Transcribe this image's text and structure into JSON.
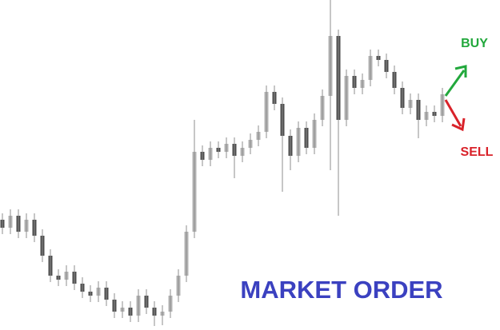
{
  "chart_data": {
    "type": "candlestick",
    "categories": [
      null,
      null,
      null,
      null,
      null,
      null,
      null,
      null,
      null,
      null,
      null,
      null,
      null,
      null,
      null,
      null,
      null,
      null,
      null,
      null,
      null,
      null,
      null,
      null,
      null,
      null,
      null,
      null,
      null,
      null,
      null,
      null,
      null,
      null,
      null,
      null,
      null,
      null,
      null,
      null,
      null,
      null,
      null,
      null,
      null,
      null,
      null,
      null,
      null,
      null,
      null,
      null,
      null,
      null,
      null,
      null
    ],
    "open": [
      138,
      128,
      143,
      123,
      138,
      118,
      93,
      68,
      63,
      73,
      58,
      48,
      43,
      53,
      38,
      23,
      28,
      18,
      43,
      28,
      18,
      23,
      43,
      68,
      123,
      223,
      213,
      228,
      223,
      233,
      218,
      228,
      238,
      248,
      298,
      283,
      243,
      218,
      253,
      228,
      263,
      293,
      368,
      263,
      318,
      303,
      313,
      343,
      338,
      323,
      303,
      278,
      288,
      263,
      273,
      268
    ],
    "high": [
      146,
      151,
      151,
      146,
      146,
      126,
      101,
      76,
      81,
      81,
      66,
      56,
      61,
      61,
      46,
      36,
      36,
      51,
      51,
      36,
      31,
      51,
      76,
      131,
      263,
      231,
      236,
      236,
      241,
      241,
      236,
      246,
      256,
      306,
      306,
      291,
      251,
      261,
      261,
      271,
      301,
      413,
      376,
      326,
      326,
      321,
      351,
      351,
      346,
      331,
      311,
      296,
      296,
      281,
      281,
      303
    ],
    "low": [
      120,
      120,
      115,
      115,
      110,
      85,
      60,
      55,
      55,
      50,
      40,
      35,
      35,
      30,
      15,
      15,
      10,
      10,
      20,
      5,
      6,
      15,
      35,
      60,
      115,
      205,
      205,
      215,
      215,
      190,
      210,
      220,
      230,
      240,
      275,
      173,
      200,
      210,
      220,
      220,
      255,
      200,
      143,
      255,
      295,
      295,
      305,
      330,
      315,
      295,
      270,
      270,
      240,
      255,
      260,
      260
    ],
    "close": [
      128,
      143,
      123,
      138,
      118,
      93,
      68,
      63,
      73,
      58,
      48,
      43,
      53,
      38,
      23,
      28,
      18,
      43,
      28,
      18,
      23,
      43,
      68,
      123,
      223,
      213,
      228,
      223,
      233,
      218,
      228,
      238,
      248,
      298,
      283,
      243,
      218,
      253,
      228,
      263,
      293,
      368,
      263,
      318,
      303,
      313,
      343,
      338,
      323,
      303,
      278,
      288,
      263,
      273,
      268,
      295
    ],
    "up_color": "#b4b4b4",
    "down_color": "#4d4d4d",
    "ylim": [
      0,
      413
    ],
    "annotations": [
      {
        "text": "BUY",
        "color": "#22a83c"
      },
      {
        "text": "SELL",
        "color": "#d9222a"
      },
      {
        "text": "MARKET ORDER",
        "color": "#3b41c0"
      }
    ]
  }
}
